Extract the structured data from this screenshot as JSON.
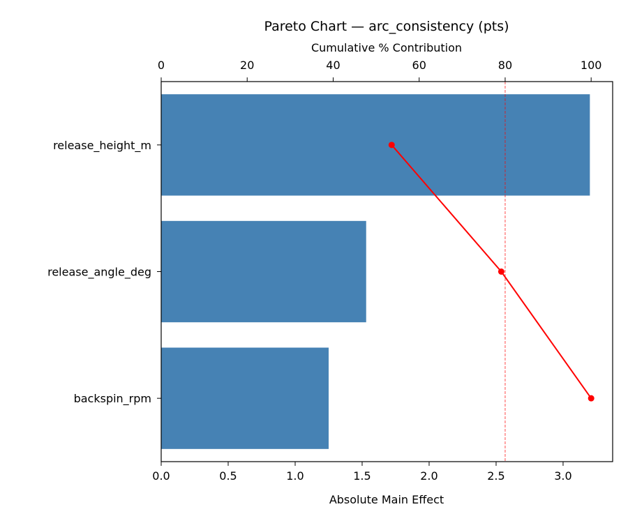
{
  "chart_data": {
    "type": "bar",
    "orientation": "horizontal",
    "title": "Pareto Chart — arc_consistency (pts)",
    "xlabel": "Absolute Main Effect",
    "secondary_xlabel": "Cumulative % Contribution",
    "categories": [
      "release_height_m",
      "release_angle_deg",
      "backspin_rpm"
    ],
    "values": [
      3.2,
      1.53,
      1.25
    ],
    "bar_color": "#4682b4",
    "xlim": [
      0,
      3.37
    ],
    "x_ticks": [
      "0.0",
      "0.5",
      "1.0",
      "1.5",
      "2.0",
      "2.5",
      "3.0"
    ],
    "secondary_xlim": [
      0,
      105
    ],
    "secondary_ticks": [
      "0",
      "20",
      "40",
      "60",
      "80",
      "100"
    ],
    "cumulative_percent": [
      53.6,
      79.1,
      100
    ],
    "cumulative_color": "#ff0000",
    "threshold_percent": 80,
    "threshold_color": "#ff0000",
    "grid": false,
    "legend": "none"
  }
}
